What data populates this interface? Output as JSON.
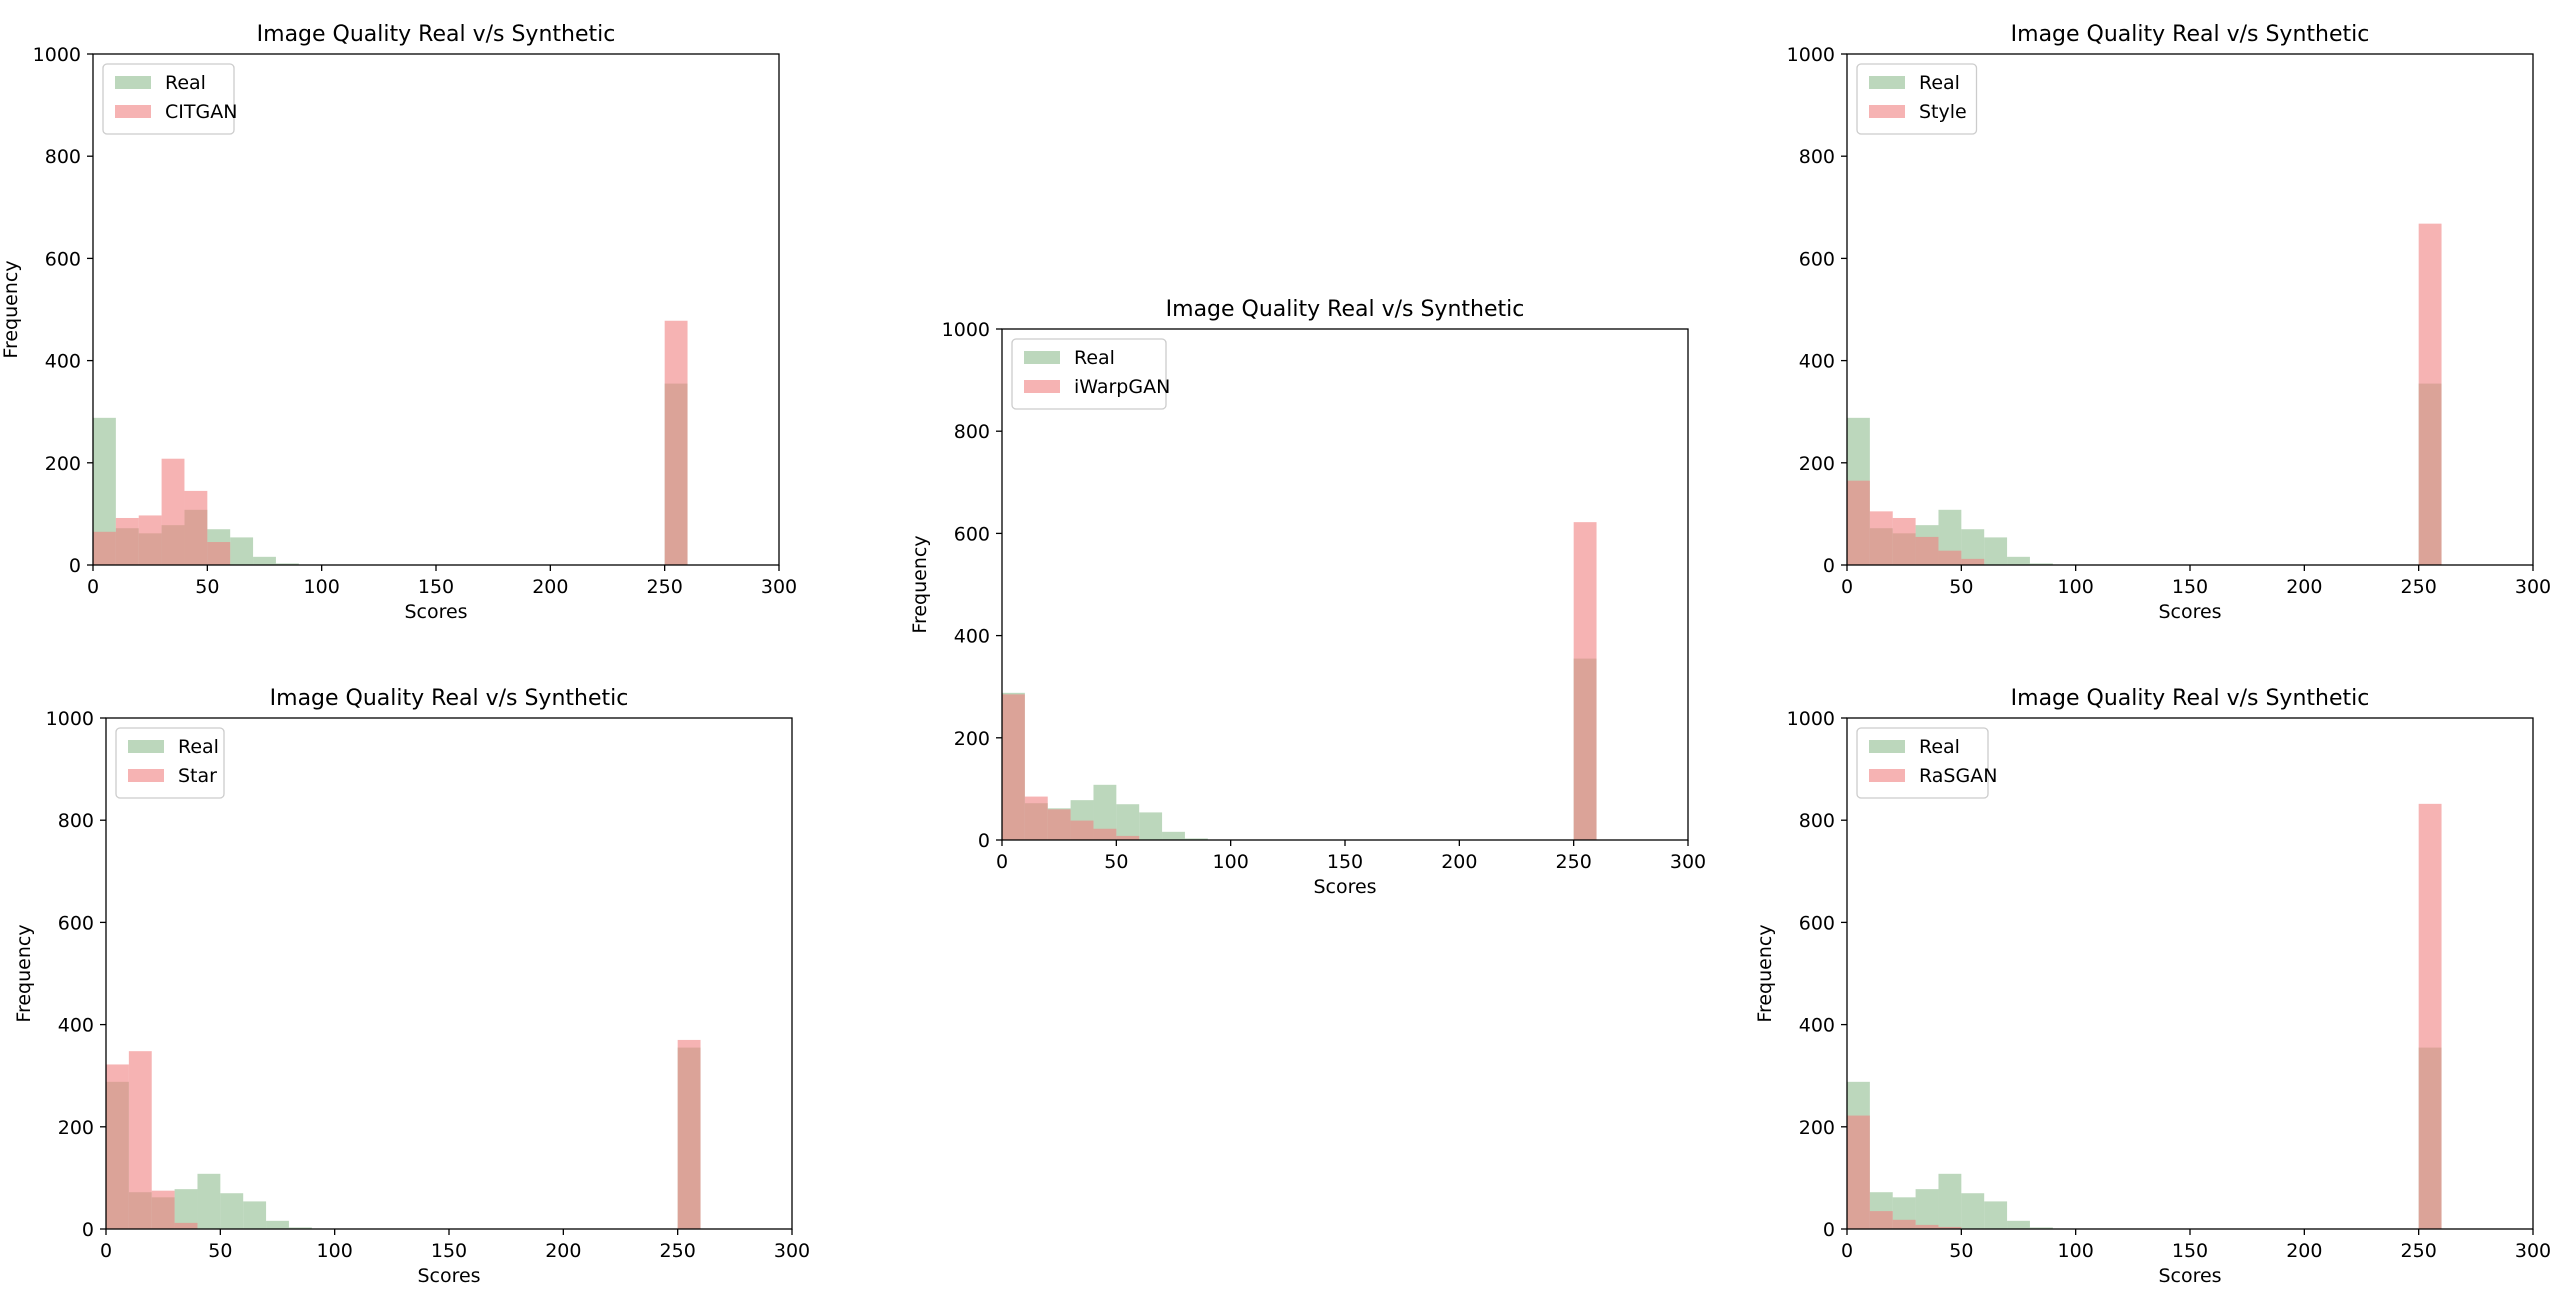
{
  "figure": {
    "background": "#ffffff",
    "real_color": "#8fbc8f",
    "synthetic_color": "#f08080",
    "overlap_opacity": 0.6
  },
  "chart_data": [
    {
      "id": "citgan",
      "type": "histogram",
      "title": "Image Quality Real v/s Synthetic",
      "xlabel": "Scores",
      "ylabel": "Frequency",
      "xlim": [
        0,
        300
      ],
      "ylim": [
        0,
        1000
      ],
      "xticks": [
        0,
        50,
        100,
        150,
        200,
        250,
        300
      ],
      "yticks": [
        0,
        200,
        400,
        600,
        800,
        1000
      ],
      "bin_width": 10,
      "legend_position": "upper-left",
      "series": [
        {
          "name": "Real",
          "color": "#8fbc8f",
          "bins": [
            [
              0,
              288
            ],
            [
              10,
              72
            ],
            [
              20,
              62
            ],
            [
              30,
              78
            ],
            [
              40,
              108
            ],
            [
              50,
              70
            ],
            [
              60,
              54
            ],
            [
              70,
              16
            ],
            [
              80,
              3
            ],
            [
              250,
              355
            ]
          ]
        },
        {
          "name": "CITGAN",
          "color": "#f08080",
          "bins": [
            [
              0,
              65
            ],
            [
              10,
              92
            ],
            [
              20,
              97
            ],
            [
              30,
              208
            ],
            [
              40,
              145
            ],
            [
              50,
              45
            ],
            [
              250,
              478
            ]
          ]
        }
      ]
    },
    {
      "id": "iwarpgan",
      "type": "histogram",
      "title": "Image Quality Real v/s Synthetic",
      "xlabel": "Scores",
      "ylabel": "Frequency",
      "xlim": [
        0,
        300
      ],
      "ylim": [
        0,
        1000
      ],
      "xticks": [
        0,
        50,
        100,
        150,
        200,
        250,
        300
      ],
      "yticks": [
        0,
        200,
        400,
        600,
        800,
        1000
      ],
      "bin_width": 10,
      "legend_position": "upper-left",
      "series": [
        {
          "name": "Real",
          "color": "#8fbc8f",
          "bins": [
            [
              0,
              288
            ],
            [
              10,
              72
            ],
            [
              20,
              62
            ],
            [
              30,
              78
            ],
            [
              40,
              108
            ],
            [
              50,
              70
            ],
            [
              60,
              54
            ],
            [
              70,
              16
            ],
            [
              80,
              3
            ],
            [
              250,
              355
            ]
          ]
        },
        {
          "name": "iWarpGAN",
          "color": "#f08080",
          "bins": [
            [
              0,
              285
            ],
            [
              10,
              85
            ],
            [
              20,
              60
            ],
            [
              30,
              38
            ],
            [
              40,
              22
            ],
            [
              50,
              8
            ],
            [
              250,
              622
            ]
          ]
        }
      ]
    },
    {
      "id": "style",
      "type": "histogram",
      "title": "Image Quality Real v/s Synthetic",
      "xlabel": "Scores",
      "ylabel": "",
      "xlim": [
        0,
        300
      ],
      "ylim": [
        0,
        1000
      ],
      "xticks": [
        0,
        50,
        100,
        150,
        200,
        250,
        300
      ],
      "yticks": [
        0,
        200,
        400,
        600,
        800,
        1000
      ],
      "bin_width": 10,
      "legend_position": "upper-left",
      "series": [
        {
          "name": "Real",
          "color": "#8fbc8f",
          "bins": [
            [
              0,
              288
            ],
            [
              10,
              72
            ],
            [
              20,
              62
            ],
            [
              30,
              78
            ],
            [
              40,
              108
            ],
            [
              50,
              70
            ],
            [
              60,
              54
            ],
            [
              70,
              16
            ],
            [
              80,
              3
            ],
            [
              250,
              355
            ]
          ]
        },
        {
          "name": "Style",
          "color": "#f08080",
          "bins": [
            [
              0,
              165
            ],
            [
              10,
              105
            ],
            [
              20,
              92
            ],
            [
              30,
              55
            ],
            [
              40,
              28
            ],
            [
              50,
              12
            ],
            [
              250,
              668
            ]
          ]
        }
      ]
    },
    {
      "id": "star",
      "type": "histogram",
      "title": "Image Quality Real v/s Synthetic",
      "xlabel": "Scores",
      "ylabel": "Frequency",
      "xlim": [
        0,
        300
      ],
      "ylim": [
        0,
        1000
      ],
      "xticks": [
        0,
        50,
        100,
        150,
        200,
        250,
        300
      ],
      "yticks": [
        0,
        200,
        400,
        600,
        800,
        1000
      ],
      "bin_width": 10,
      "legend_position": "upper-left",
      "series": [
        {
          "name": "Real",
          "color": "#8fbc8f",
          "bins": [
            [
              0,
              288
            ],
            [
              10,
              72
            ],
            [
              20,
              62
            ],
            [
              30,
              78
            ],
            [
              40,
              108
            ],
            [
              50,
              70
            ],
            [
              60,
              54
            ],
            [
              70,
              16
            ],
            [
              80,
              3
            ],
            [
              250,
              355
            ]
          ]
        },
        {
          "name": "Star",
          "color": "#f08080",
          "bins": [
            [
              0,
              322
            ],
            [
              10,
              348
            ],
            [
              20,
              75
            ],
            [
              30,
              12
            ],
            [
              250,
              370
            ]
          ]
        }
      ]
    },
    {
      "id": "rasgan",
      "type": "histogram",
      "title": "Image Quality Real v/s Synthetic",
      "xlabel": "Scores",
      "ylabel": "Frequency",
      "xlim": [
        0,
        300
      ],
      "ylim": [
        0,
        1000
      ],
      "xticks": [
        0,
        50,
        100,
        150,
        200,
        250,
        300
      ],
      "yticks": [
        0,
        200,
        400,
        600,
        800,
        1000
      ],
      "bin_width": 10,
      "legend_position": "upper-left",
      "series": [
        {
          "name": "Real",
          "color": "#8fbc8f",
          "bins": [
            [
              0,
              288
            ],
            [
              10,
              72
            ],
            [
              20,
              62
            ],
            [
              30,
              78
            ],
            [
              40,
              108
            ],
            [
              50,
              70
            ],
            [
              60,
              54
            ],
            [
              70,
              16
            ],
            [
              80,
              3
            ],
            [
              250,
              355
            ]
          ]
        },
        {
          "name": "RaSGAN",
          "color": "#f08080",
          "bins": [
            [
              0,
              222
            ],
            [
              10,
              35
            ],
            [
              20,
              18
            ],
            [
              30,
              8
            ],
            [
              40,
              4
            ],
            [
              250,
              832
            ]
          ]
        }
      ]
    }
  ]
}
